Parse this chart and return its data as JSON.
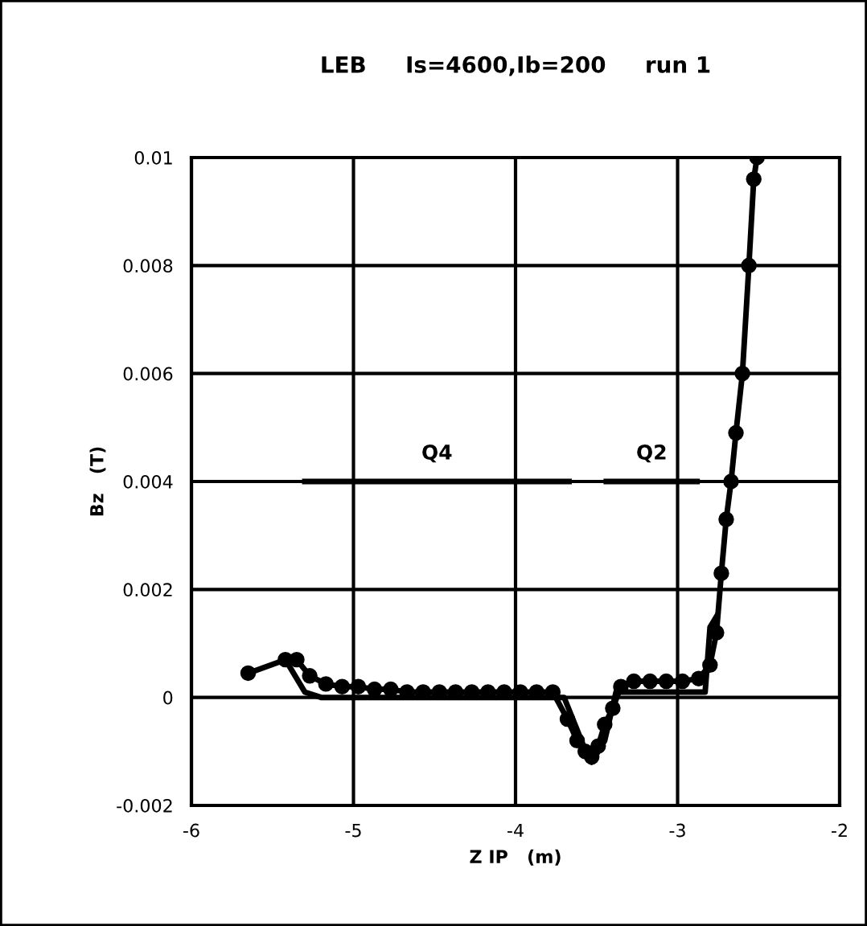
{
  "chart_data": {
    "type": "line",
    "title": "LEB     Is=4600,Ib=200     run 1",
    "xlabel": "Z IP   (m)",
    "ylabel": "Bz   (T)",
    "xlim": [
      -6,
      -2
    ],
    "xticks": [
      -6,
      -5,
      -4,
      -3,
      -2
    ],
    "ylim": [
      -0.002,
      0.01
    ],
    "yticks": [
      -0.002,
      0,
      0.002,
      0.004,
      0.006,
      0.008,
      0.01
    ],
    "grid": true,
    "legend": false,
    "series": [
      {
        "color": "#000000",
        "marker": "circle",
        "x": [
          -5.65,
          -5.42,
          -5.35,
          -5.27,
          -5.17,
          -5.07,
          -4.97,
          -4.87,
          -4.77,
          -4.67,
          -4.57,
          -4.47,
          -4.37,
          -4.27,
          -4.17,
          -4.07,
          -3.97,
          -3.87,
          -3.77,
          -3.68,
          -3.62,
          -3.57,
          -3.53,
          -3.49,
          -3.45,
          -3.4,
          -3.35,
          -3.27,
          -3.17,
          -3.07,
          -2.97,
          -2.87,
          -2.8,
          -2.76,
          -2.73,
          -2.7,
          -2.67,
          -2.64,
          -2.6,
          -2.56,
          -2.53,
          -2.51
        ],
        "values": [
          0.00045,
          0.0007,
          0.0007,
          0.0004,
          0.00025,
          0.0002,
          0.0002,
          0.00015,
          0.00015,
          0.0001,
          0.0001,
          0.0001,
          0.0001,
          0.0001,
          0.0001,
          0.0001,
          0.0001,
          0.0001,
          0.0001,
          -0.0004,
          -0.0008,
          -0.001,
          -0.0011,
          -0.0009,
          -0.0005,
          -0.0002,
          0.0002,
          0.0003,
          0.0003,
          0.0003,
          0.0003,
          0.00035,
          0.0006,
          0.0012,
          0.0023,
          0.0033,
          0.004,
          0.0049,
          0.006,
          0.008,
          0.0096,
          0.01
        ]
      },
      {
        "color": "#000000",
        "marker": "none",
        "x": [
          -5.42,
          -5.3,
          -5.2,
          -3.7,
          -3.58,
          -3.53,
          -3.45,
          -3.38,
          -2.83,
          -2.8,
          -2.76
        ],
        "values": [
          0.0007,
          0.0001,
          0,
          0,
          -0.0009,
          -0.0012,
          -0.0008,
          0.0001,
          0.0001,
          0.0013,
          0.0015
        ]
      },
      {
        "name": "Q4",
        "color": "#000000",
        "marker": "none",
        "x": [
          -5.3,
          -3.67
        ],
        "values": [
          0.004,
          0.004
        ]
      },
      {
        "name": "Q2",
        "color": "#000000",
        "marker": "none",
        "x": [
          -3.44,
          -2.88
        ],
        "values": [
          0.004,
          0.004
        ]
      }
    ]
  }
}
